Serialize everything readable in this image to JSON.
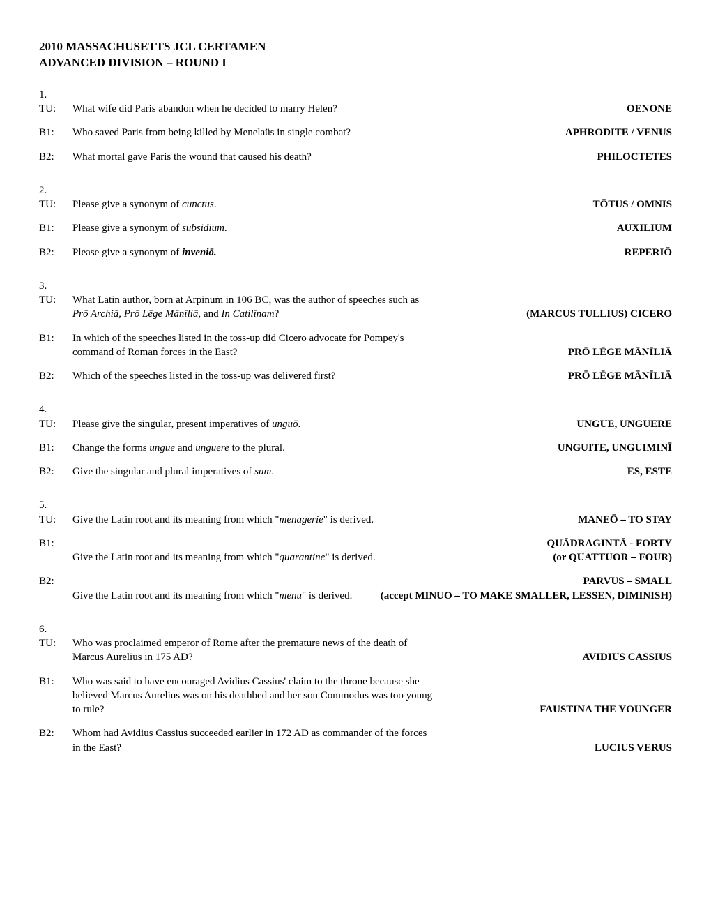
{
  "title_line1": "2010 MASSACHUSETTS JCL CERTAMEN",
  "title_line2": "ADVANCED DIVISION – ROUND I",
  "blocks": [
    {
      "num": "1.",
      "items": [
        {
          "label": "TU:",
          "question_html": "What wife did Paris abandon when he decided to marry Helen?",
          "answer": "OENONE"
        },
        {
          "label": "B1:",
          "question_html": "Who saved Paris from being killed by Menelaüs in single combat?",
          "answer": "APHRODITE / VENUS"
        },
        {
          "label": "B2:",
          "question_html": "What mortal gave Paris the wound that caused his death?",
          "answer": "PHILOCTETES"
        }
      ]
    },
    {
      "num": "2.",
      "items": [
        {
          "label": "TU:",
          "question_html": "Please give a synonym of <span class=\"italic\">cunctus</span>.",
          "answer": "TŌTUS / OMNIS"
        },
        {
          "label": "B1:",
          "question_html": "Please give a synonym of <span class=\"italic\">subsidium</span>.",
          "answer": "AUXILIUM"
        },
        {
          "label": "B2:",
          "question_html": "Please give a synonym of <span class=\"italic bold\">inveniō.</span>",
          "answer": "REPERIŌ"
        }
      ]
    },
    {
      "num": "3.",
      "items": [
        {
          "label": "TU:",
          "question_html": "What Latin author, born at Arpinum in 106 BC, was the author of speeches such as <span class=\"italic\">Prō Archiā, Prō Lēge Mānīliā</span>, and <span class=\"italic\">In Catilīnam</span>?",
          "answer": "(MARCUS TULLIUS) CICERO"
        },
        {
          "label": "B1:",
          "question_html": "In which of the speeches listed in the toss-up did Cicero advocate for Pompey's command of Roman forces in the East?",
          "answer": "PRŌ LĒGE MĀNĪLIĀ"
        },
        {
          "label": "B2:",
          "question_html": "Which of the speeches listed in the toss-up was delivered first?",
          "answer": "PRŌ LĒGE MĀNĪLIĀ"
        }
      ]
    },
    {
      "num": "4.",
      "items": [
        {
          "label": "TU:",
          "question_html": "Please give the singular, present imperatives of <span class=\"italic\">unguō</span>.",
          "answer": "UNGUE, UNGUERE"
        },
        {
          "label": "B1:",
          "question_html": "Change the forms <span class=\"italic\">ungue</span> and <span class=\"italic\">unguere</span> to the plural.",
          "answer": "UNGUITE, UNGUIMINĪ"
        },
        {
          "label": "B2:",
          "question_html": "Give the singular and plural imperatives of <span class=\"italic\">sum</span>.",
          "answer": "ES, ESTE"
        }
      ]
    },
    {
      "num": "5.",
      "items": [
        {
          "label": "TU:",
          "question_html": "Give the Latin root and its meaning from which \"<span class=\"italic\">menagerie</span>\" is derived.",
          "answer": "MANEŌ – TO STAY"
        },
        {
          "label": "B1:",
          "question_html": "Give the Latin root and its meaning from which \"<span class=\"italic\">quarantine</span>\" is derived.",
          "answer": "QUĀDRAGINTĀ - FORTY\n(or QUATTUOR – FOUR)"
        },
        {
          "label": "B2:",
          "question_html": "Give the Latin root and its meaning from which \"<span class=\"italic\">menu</span>\" is derived.",
          "answer": "PARVUS – SMALL\n(accept MINUO – TO MAKE SMALLER, LESSEN, DIMINISH)"
        }
      ]
    },
    {
      "num": "6.",
      "items": [
        {
          "label": "TU:",
          "question_html": "Who was proclaimed emperor of Rome after the premature news of the death of Marcus Aurelius in 175 AD?",
          "answer": "AVIDIUS CASSIUS"
        },
        {
          "label": "B1:",
          "question_html": "Who was said to have encouraged Avidius Cassius' claim to the throne because she believed Marcus Aurelius was on his deathbed and her son Commodus was too young to rule?",
          "answer": "FAUSTINA THE YOUNGER"
        },
        {
          "label": "B2:",
          "question_html": "Whom had Avidius Cassius succeeded earlier in 172 AD as commander of the forces in the East?",
          "answer": "LUCIUS VERUS"
        }
      ]
    }
  ]
}
